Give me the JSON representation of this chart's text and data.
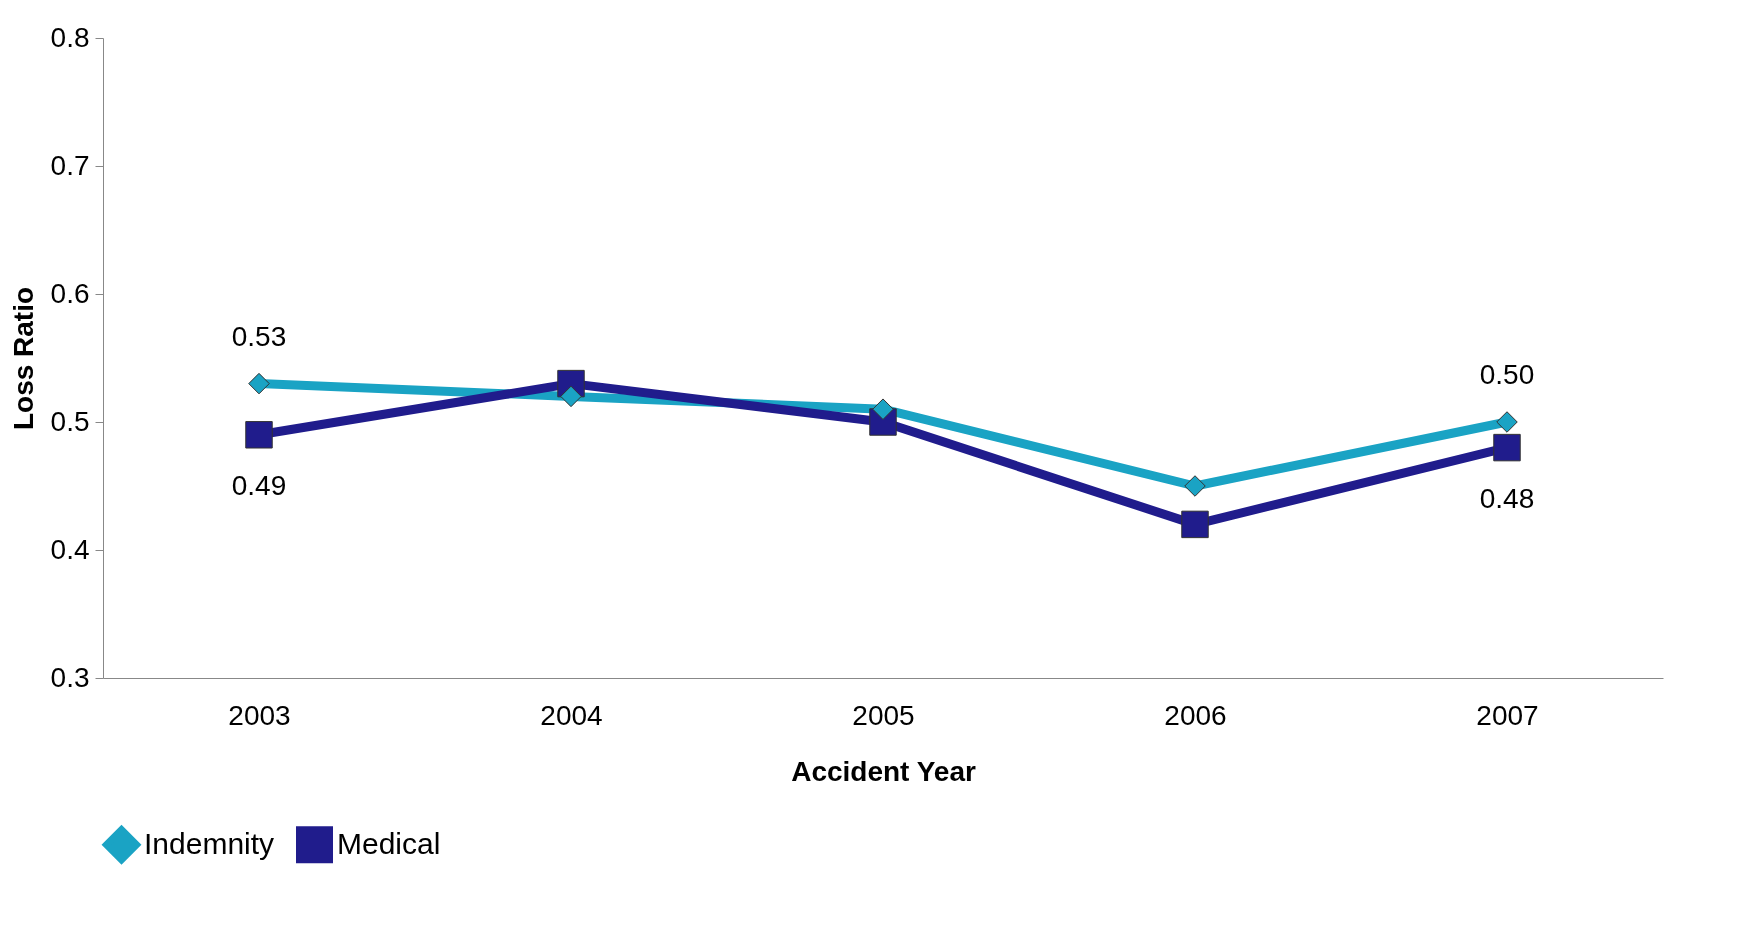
{
  "chart_data": {
    "type": "line",
    "xlabel": "Accident Year",
    "ylabel": "Loss Ratio",
    "categories": [
      "2003",
      "2004",
      "2005",
      "2006",
      "2007"
    ],
    "series": [
      {
        "name": "Indemnity",
        "color": "#1aa3c4",
        "marker": "diamond",
        "values": [
          0.53,
          0.52,
          0.51,
          0.45,
          0.5
        ],
        "value_labels": [
          "0.53",
          null,
          null,
          null,
          "0.50"
        ]
      },
      {
        "name": "Medical",
        "color": "#201c8c",
        "marker": "square",
        "values": [
          0.49,
          0.53,
          0.5,
          0.42,
          0.48
        ],
        "value_labels": [
          "0.49",
          null,
          null,
          null,
          "0.48"
        ]
      }
    ],
    "ylim": [
      0.3,
      0.8
    ],
    "yticks": [
      0.3,
      0.4,
      0.5,
      0.6,
      0.7,
      0.8
    ],
    "grid": false,
    "legend": "bottom"
  }
}
